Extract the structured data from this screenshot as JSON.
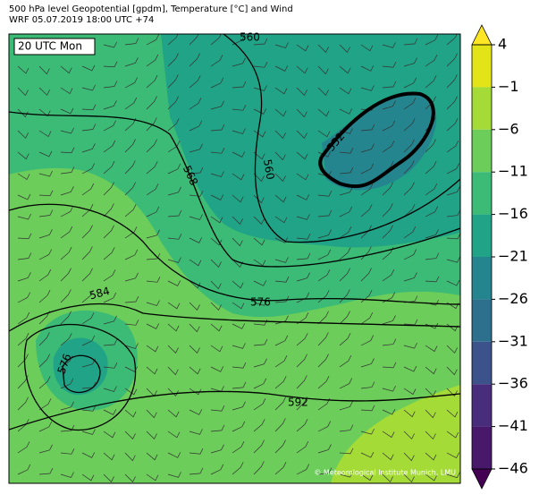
{
  "header": {
    "title": "500 hPa level Geopotential [gpdm], Temperature [°C] and Wind",
    "subtitle": "WRF 05.07.2019 18:00 UTC +74"
  },
  "map": {
    "time_label": "20 UTC Mon",
    "contour_labels": [
      "560",
      "568",
      "560",
      "552",
      "584",
      "576",
      "576",
      "592"
    ],
    "copyright": "© Meteorological Institute Munich, LMU"
  },
  "colorbar": {
    "ticks": [
      {
        "value": 4,
        "label": "4"
      },
      {
        "value": -1,
        "label": "−1"
      },
      {
        "value": -6,
        "label": "−6"
      },
      {
        "value": -11,
        "label": "−11"
      },
      {
        "value": -16,
        "label": "−16"
      },
      {
        "value": -21,
        "label": "−21"
      },
      {
        "value": -26,
        "label": "−26"
      },
      {
        "value": -31,
        "label": "−31"
      },
      {
        "value": -36,
        "label": "−36"
      },
      {
        "value": -41,
        "label": "−41"
      },
      {
        "value": -46,
        "label": "−46"
      }
    ],
    "colors": [
      "#e2e418",
      "#a5db36",
      "#6ccd5a",
      "#3bbb75",
      "#20a386",
      "#25858e",
      "#2d708e",
      "#3b528b",
      "#472d7b",
      "#48186a"
    ],
    "over_color": "#fde725",
    "under_color": "#440154"
  }
}
